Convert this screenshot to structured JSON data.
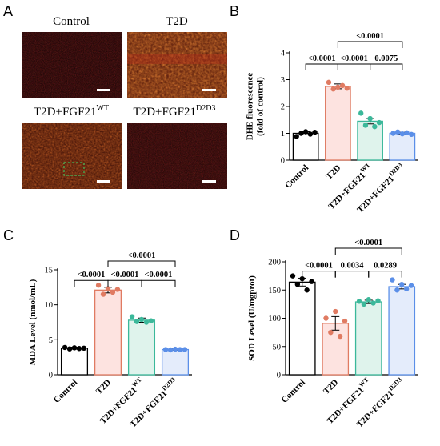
{
  "figure": {
    "panel_letters": [
      "A",
      "B",
      "C",
      "D"
    ],
    "micrograph_captions": [
      "Control",
      "T2D",
      "T2D+FGF21",
      "T2D+FGF21"
    ],
    "micrograph_caption_sups": [
      "",
      "",
      "WT",
      "D2D3"
    ]
  },
  "chart_data": [
    {
      "type": "bar",
      "panel": "B",
      "ylabel_lines": [
        "DHE fluorescence",
        "(fold of control)"
      ],
      "categories": [
        "Control",
        "T2D",
        "T2D+FGF21",
        "T2D+FGF21"
      ],
      "category_sups": [
        "",
        "",
        "WT",
        "D2D3"
      ],
      "colors": [
        "#000000",
        "#e07b62",
        "#3bb89a",
        "#5b8fe8"
      ],
      "fills": [
        "#ffffff",
        "#fde3e0",
        "#dff3ec",
        "#e4ecfb"
      ],
      "values": [
        1.0,
        2.75,
        1.45,
        1.0
      ],
      "errors": [
        0.06,
        0.09,
        0.1,
        0.04
      ],
      "points": [
        [
          0.88,
          1.0,
          1.06,
          0.97,
          1.04
        ],
        [
          2.9,
          2.65,
          2.72,
          2.78,
          2.68
        ],
        [
          1.75,
          1.3,
          1.55,
          1.25,
          1.4
        ],
        [
          1.0,
          1.05,
          0.98,
          1.02,
          0.96
        ]
      ],
      "ylim": [
        0,
        4
      ],
      "yticks": [
        0,
        1,
        2,
        3,
        4
      ],
      "comparisons": [
        {
          "from": 0,
          "to": 1,
          "label": "<0.0001"
        },
        {
          "from": 1,
          "to": 2,
          "label": "<0.0001"
        },
        {
          "from": 2,
          "to": 3,
          "label": "0.0075"
        },
        {
          "from": 1,
          "to": 3,
          "label": "<0.0001"
        }
      ]
    },
    {
      "type": "bar",
      "panel": "C",
      "ylabel_lines": [
        "MDA Level (nmol/mL)"
      ],
      "categories": [
        "Control",
        "T2D",
        "T2D+FGF21",
        "T2D+FGF21"
      ],
      "category_sups": [
        "",
        "",
        "WT",
        "D2D3"
      ],
      "colors": [
        "#000000",
        "#e07b62",
        "#3bb89a",
        "#5b8fe8"
      ],
      "fills": [
        "#ffffff",
        "#fde3e0",
        "#dff3ec",
        "#e4ecfb"
      ],
      "values": [
        3.8,
        12.1,
        7.8,
        3.6
      ],
      "errors": [
        0.15,
        0.4,
        0.3,
        0.1
      ],
      "points": [
        [
          3.9,
          3.7,
          3.85,
          3.75,
          3.8
        ],
        [
          12.8,
          11.5,
          12.3,
          11.8,
          12.2
        ],
        [
          8.3,
          7.6,
          7.9,
          7.5,
          7.7
        ],
        [
          3.6,
          3.55,
          3.65,
          3.6,
          3.6
        ]
      ],
      "ylim": [
        0,
        15
      ],
      "yticks": [
        0,
        5,
        10,
        15
      ],
      "comparisons": [
        {
          "from": 0,
          "to": 1,
          "label": "<0.0001"
        },
        {
          "from": 1,
          "to": 2,
          "label": "<0.0001"
        },
        {
          "from": 2,
          "to": 3,
          "label": "<0.0001"
        },
        {
          "from": 1,
          "to": 3,
          "label": "<0.0001"
        }
      ]
    },
    {
      "type": "bar",
      "panel": "D",
      "ylabel_lines": [
        "SOD Level (U/mgprot)"
      ],
      "categories": [
        "Control",
        "T2D",
        "T2D+FGF21",
        "T2D+FGF21"
      ],
      "category_sups": [
        "",
        "",
        "WT",
        "D2D3"
      ],
      "colors": [
        "#000000",
        "#e07b62",
        "#3bb89a",
        "#5b8fe8"
      ],
      "fills": [
        "#ffffff",
        "#fde3e0",
        "#dff3ec",
        "#e4ecfb"
      ],
      "values": [
        164,
        91,
        129,
        156
      ],
      "errors": [
        7,
        12,
        3,
        4
      ],
      "points": [
        [
          175,
          160,
          170,
          150,
          165
        ],
        [
          100,
          75,
          112,
          68,
          95
        ],
        [
          130,
          125,
          133,
          127,
          131
        ],
        [
          168,
          150,
          160,
          152,
          158
        ]
      ],
      "ylim": [
        0,
        200
      ],
      "yticks": [
        0,
        50,
        100,
        150,
        200
      ],
      "comparisons": [
        {
          "from": 0,
          "to": 1,
          "label": "<0.0001"
        },
        {
          "from": 1,
          "to": 2,
          "label": "0.0034"
        },
        {
          "from": 2,
          "to": 3,
          "label": "0.0289"
        },
        {
          "from": 1,
          "to": 3,
          "label": "<0.0001"
        }
      ]
    }
  ]
}
